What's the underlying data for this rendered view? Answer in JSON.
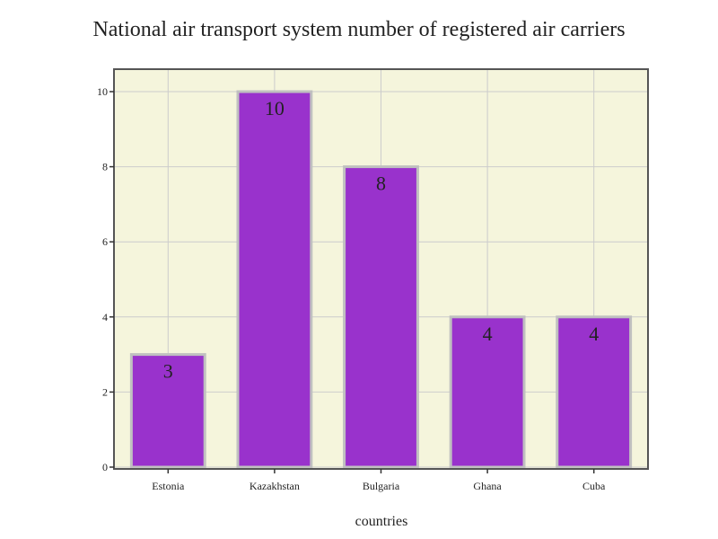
{
  "chart_data": {
    "type": "bar",
    "title": "National air transport system number of registered air carriers",
    "xlabel": "countries",
    "ylabel": "",
    "categories": [
      "Estonia",
      "Kazakhstan",
      "Bulgaria",
      "Ghana",
      "Cuba"
    ],
    "values": [
      3,
      10,
      8,
      4,
      4
    ],
    "data_labels": [
      "3",
      "10",
      "8",
      "4",
      "4"
    ],
    "ylim": [
      0,
      10.6
    ],
    "yticks": [
      0,
      2,
      4,
      6,
      8,
      10
    ],
    "ytick_labels": [
      "0",
      "2",
      "4",
      "6",
      "8",
      "10"
    ],
    "grid": true,
    "legend": "none",
    "colors": {
      "bar_fill": "#9932cc",
      "bar_stroke": "#c0c0c0",
      "plot_background": "#f5f5dc",
      "grid": "#cccccc",
      "axis": "#555555"
    }
  }
}
